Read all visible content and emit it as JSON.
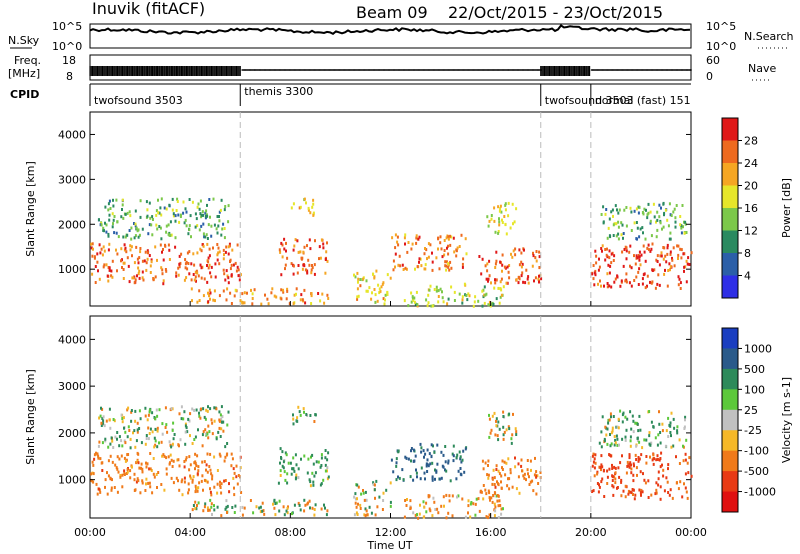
{
  "header": {
    "station": "Inuvik (fitACF)",
    "beam": "Beam 09",
    "dates": "22/Oct/2015 - 23/Oct/2015"
  },
  "panels": {
    "nsky_label": "N.Sky",
    "nsky_ticks": [
      "10^5",
      "10^0"
    ],
    "nsearch_label": "N.Search",
    "nsearch_ticks": [
      "10^5",
      "10^0"
    ],
    "freq_label_1": "Freq.",
    "freq_label_2": "[MHz]",
    "freq_ticks": [
      "18",
      "8"
    ],
    "nave_label": "Nave",
    "nave_ticks": [
      "60",
      "0"
    ],
    "cpid_label": "CPID",
    "cpid_entries": [
      {
        "hour": 0.0,
        "label": "twofsound 3503"
      },
      {
        "hour": 6.0,
        "label": "themis 3300"
      },
      {
        "hour": 18.0,
        "label": "twofsound 3503"
      },
      {
        "hour": 20.0,
        "label": "normal (fast) 151"
      }
    ],
    "mode_change_hours": [
      6,
      18,
      20
    ]
  },
  "chart_data": [
    {
      "type": "heatmap",
      "title": "",
      "xlabel": "Time UT",
      "ylabel": "Slant Range [km]",
      "xlim": [
        0,
        24
      ],
      "ylim": [
        180,
        4500
      ],
      "yticks": [
        "1000",
        "2000",
        "3000",
        "4000"
      ],
      "colorbar_label": "Power [dB]",
      "colorbar_ticks": [
        "4",
        "8",
        "12",
        "16",
        "20",
        "24",
        "28"
      ],
      "colorbar_colors": [
        "#2f2fe6",
        "#2b5fa8",
        "#2a8a60",
        "#7cc84a",
        "#e6e62a",
        "#f5a623",
        "#ee6a1f",
        "#e01818"
      ],
      "echo_regions": [
        {
          "start_hour": 0.0,
          "end_hour": 6.0,
          "range_km": [
            700,
            1600
          ],
          "value": 26
        },
        {
          "start_hour": 0.3,
          "end_hour": 5.5,
          "range_km": [
            1700,
            2600
          ],
          "value": 12
        },
        {
          "start_hour": 4.0,
          "end_hour": 9.5,
          "range_km": [
            250,
            600
          ],
          "value": 24
        },
        {
          "start_hour": 7.5,
          "end_hour": 9.5,
          "range_km": [
            900,
            1700
          ],
          "value": 27
        },
        {
          "start_hour": 8.0,
          "end_hour": 9.0,
          "range_km": [
            2200,
            2600
          ],
          "value": 20
        },
        {
          "start_hour": 10.5,
          "end_hour": 12.0,
          "range_km": [
            250,
            1000
          ],
          "value": 20
        },
        {
          "start_hour": 12.0,
          "end_hour": 15.0,
          "range_km": [
            1000,
            1800
          ],
          "value": 24
        },
        {
          "start_hour": 12.5,
          "end_hour": 16.5,
          "range_km": [
            200,
            700
          ],
          "value": 16
        },
        {
          "start_hour": 15.5,
          "end_hour": 18.0,
          "range_km": [
            700,
            1500
          ],
          "value": 27
        },
        {
          "start_hour": 15.8,
          "end_hour": 17.0,
          "range_km": [
            1800,
            2500
          ],
          "value": 18
        },
        {
          "start_hour": 20.0,
          "end_hour": 24.0,
          "range_km": [
            600,
            1600
          ],
          "value": 28
        },
        {
          "start_hour": 20.3,
          "end_hour": 23.8,
          "range_km": [
            1700,
            2500
          ],
          "value": 12
        }
      ]
    },
    {
      "type": "heatmap",
      "title": "",
      "xlabel": "Time UT",
      "ylabel": "Slant Range [km]",
      "xlim": [
        0,
        24
      ],
      "ylim": [
        180,
        4500
      ],
      "yticks": [
        "1000",
        "2000",
        "3000",
        "4000"
      ],
      "xticks": [
        "00:00",
        "04:00",
        "08:00",
        "12:00",
        "16:00",
        "20:00",
        "00:00"
      ],
      "colorbar_label": "Velocity [m s-1]",
      "colorbar_ticks": [
        "1000",
        "500",
        "100",
        "25",
        "-25",
        "-100",
        "-500",
        "-1000"
      ],
      "colorbar_colors": [
        "#1a3ec0",
        "#2a5a8a",
        "#2d8a5a",
        "#5cc83a",
        "#c0c0c0",
        "#f5b828",
        "#f07a1a",
        "#e83a14",
        "#e01010"
      ],
      "echo_regions": [
        {
          "start_hour": 0.0,
          "end_hour": 6.0,
          "range_km": [
            700,
            1600
          ],
          "value": -300
        },
        {
          "start_hour": 0.3,
          "end_hour": 5.5,
          "range_km": [
            1700,
            2600
          ],
          "value": 0
        },
        {
          "start_hour": 4.0,
          "end_hour": 9.5,
          "range_km": [
            250,
            600
          ],
          "value": 0
        },
        {
          "start_hour": 7.5,
          "end_hour": 9.5,
          "range_km": [
            900,
            1700
          ],
          "value": 200
        },
        {
          "start_hour": 8.0,
          "end_hour": 9.0,
          "range_km": [
            2200,
            2600
          ],
          "value": 100
        },
        {
          "start_hour": 10.5,
          "end_hour": 12.0,
          "range_km": [
            250,
            1000
          ],
          "value": 0
        },
        {
          "start_hour": 12.0,
          "end_hour": 15.0,
          "range_km": [
            1000,
            1800
          ],
          "value": 600
        },
        {
          "start_hour": 12.5,
          "end_hour": 16.5,
          "range_km": [
            200,
            700
          ],
          "value": -150
        },
        {
          "start_hour": 15.5,
          "end_hour": 18.0,
          "range_km": [
            700,
            1500
          ],
          "value": -300
        },
        {
          "start_hour": 15.8,
          "end_hour": 17.0,
          "range_km": [
            1800,
            2500
          ],
          "value": 0
        },
        {
          "start_hour": 20.0,
          "end_hour": 24.0,
          "range_km": [
            600,
            1600
          ],
          "value": -600
        },
        {
          "start_hour": 20.3,
          "end_hour": 23.8,
          "range_km": [
            1700,
            2500
          ],
          "value": 100
        }
      ]
    }
  ]
}
